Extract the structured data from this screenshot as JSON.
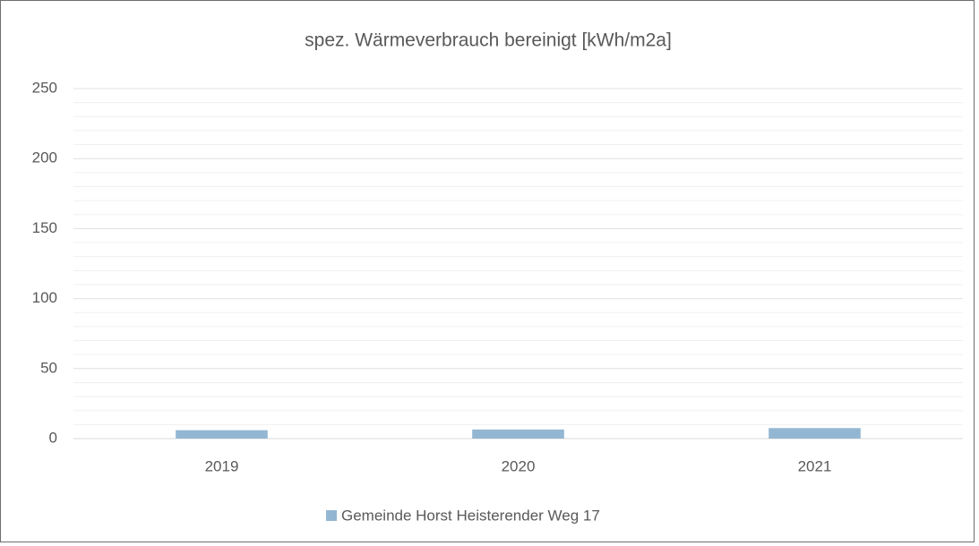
{
  "chart_data": {
    "type": "bar",
    "title": "spez. Wärmeverbrauch bereinigt [kWh/m2a]",
    "categories": [
      "2019",
      "2020",
      "2021"
    ],
    "series": [
      {
        "name": "Gemeinde Horst Heisterender Weg 17",
        "color": "#93b7d3",
        "values": [
          6,
          6.5,
          7.5
        ]
      }
    ],
    "ylim": [
      0,
      250
    ],
    "yticks": [
      0,
      50,
      100,
      150,
      200,
      250
    ],
    "grid": true,
    "minor_grid_step": 10,
    "legend": "bottom"
  }
}
